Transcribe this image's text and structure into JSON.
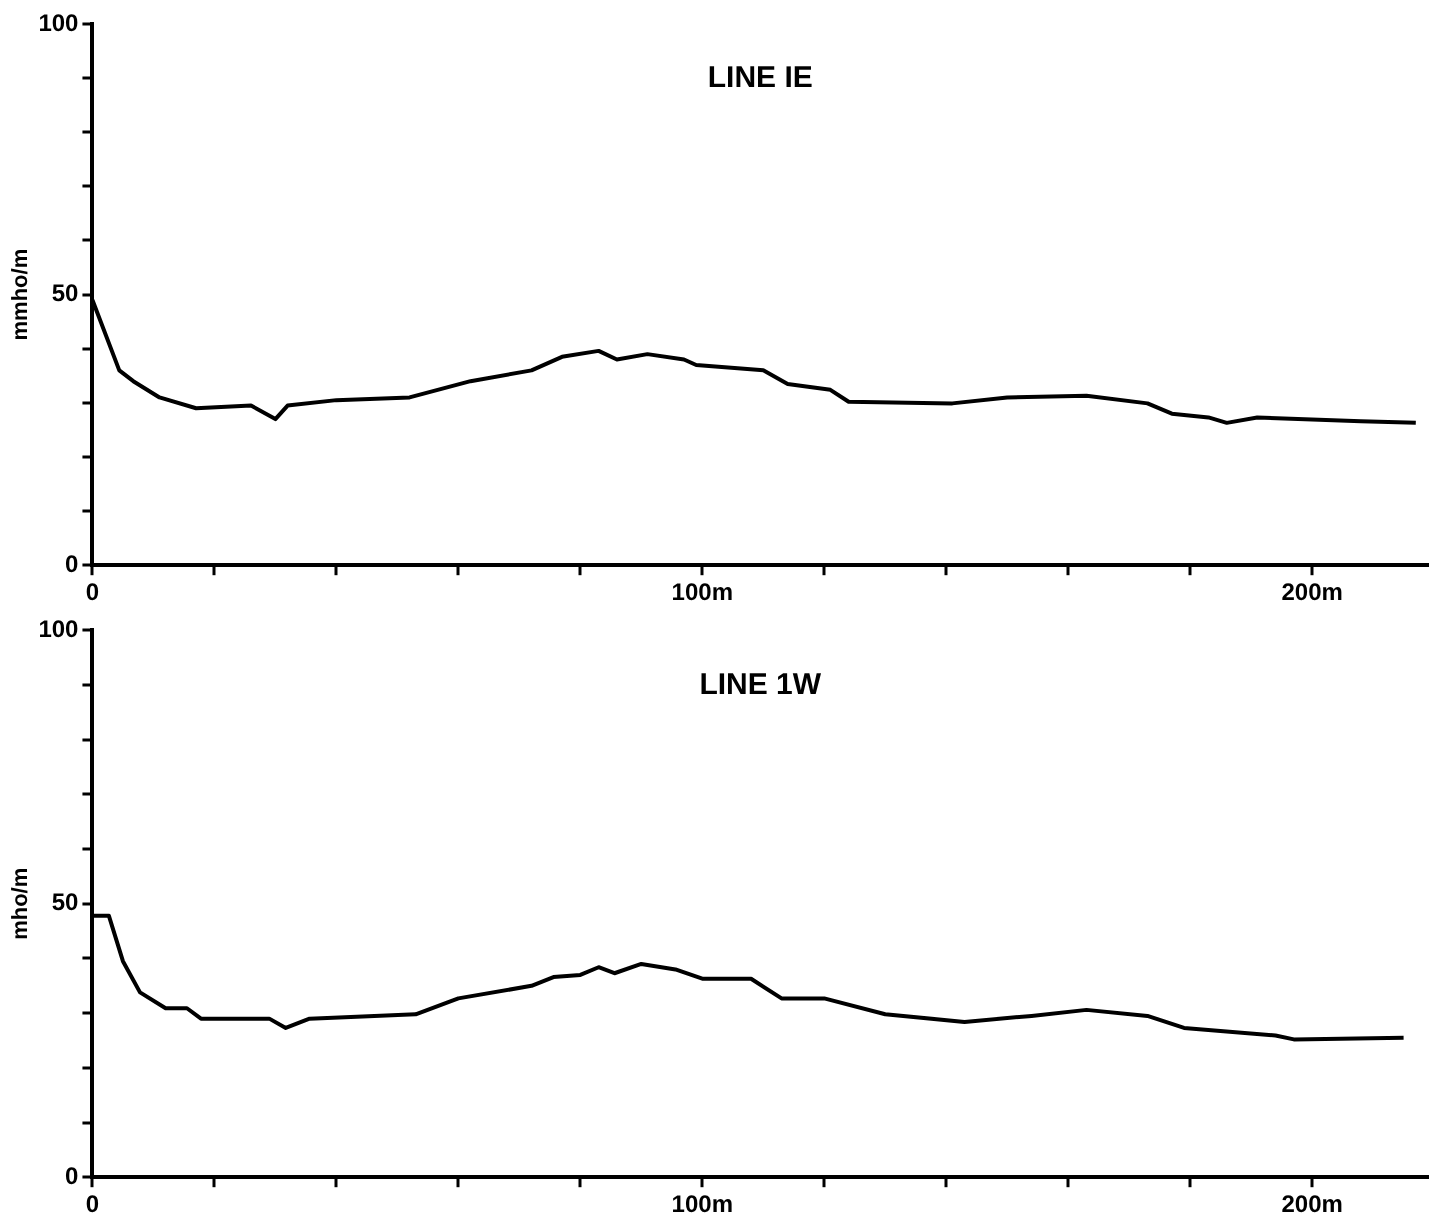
{
  "chart_data": [
    {
      "type": "line",
      "title": "LINE IE",
      "ylabel": "mmho/m",
      "xlim": [
        0,
        219
      ],
      "ylim": [
        0,
        100
      ],
      "xticks": [
        0,
        {
          "value": 20,
          "label": null
        },
        {
          "value": 40,
          "label": null
        },
        {
          "value": 60,
          "label": null
        },
        {
          "value": 80,
          "label": null
        },
        {
          "value": 100,
          "label": "100m"
        },
        {
          "value": 120,
          "label": null
        },
        {
          "value": 140,
          "label": null
        },
        {
          "value": 160,
          "label": null
        },
        {
          "value": 180,
          "label": null
        },
        {
          "value": 200,
          "label": "200m"
        }
      ],
      "yticks": [
        0,
        {
          "value": 10,
          "label": null
        },
        {
          "value": 20,
          "label": null
        },
        {
          "value": 30,
          "label": null
        },
        {
          "value": 40,
          "label": null
        },
        50,
        {
          "value": 60,
          "label": null
        },
        {
          "value": 70,
          "label": null
        },
        {
          "value": 80,
          "label": null
        },
        {
          "value": 90,
          "label": null
        },
        100
      ],
      "grid": false,
      "marker": "none",
      "line_style": "solid",
      "series": [
        {
          "color": "#000000",
          "x": [
            0,
            4.4,
            6.7,
            11,
            17,
            26,
            30,
            32,
            40,
            52,
            62,
            72,
            77,
            83,
            86,
            91,
            97,
            99,
            110,
            114,
            121,
            124,
            141,
            150,
            163,
            173,
            177,
            183,
            186,
            191,
            208,
            217
          ],
          "values": [
            49,
            36,
            34,
            31,
            29,
            29.5,
            27,
            29.5,
            30.5,
            31,
            34,
            36,
            38.5,
            39.6,
            38,
            39,
            38,
            37,
            36,
            33.5,
            32.4,
            30.2,
            29.9,
            31,
            31.3,
            29.9,
            28,
            27.3,
            26.3,
            27.3,
            26.6,
            26.3
          ]
        }
      ]
    },
    {
      "type": "line",
      "title": "LINE 1W",
      "ylabel": "mho/m",
      "xlim": [
        0,
        219
      ],
      "ylim": [
        0,
        100
      ],
      "xticks": [
        0,
        {
          "value": 20,
          "label": null
        },
        {
          "value": 40,
          "label": null
        },
        {
          "value": 60,
          "label": null
        },
        {
          "value": 80,
          "label": null
        },
        {
          "value": 100,
          "label": "100m"
        },
        {
          "value": 120,
          "label": null
        },
        {
          "value": 140,
          "label": null
        },
        {
          "value": 160,
          "label": null
        },
        {
          "value": 180,
          "label": null
        },
        {
          "value": 200,
          "label": "200m"
        }
      ],
      "yticks": [
        0,
        {
          "value": 10,
          "label": null
        },
        {
          "value": 20,
          "label": null
        },
        {
          "value": 30,
          "label": null
        },
        {
          "value": 40,
          "label": null
        },
        50,
        {
          "value": 60,
          "label": null
        },
        {
          "value": 70,
          "label": null
        },
        {
          "value": 80,
          "label": null
        },
        {
          "value": 90,
          "label": null
        },
        100
      ],
      "grid": false,
      "marker": "none",
      "line_style": "solid",
      "series": [
        {
          "color": "#000000",
          "x": [
            0,
            2.7,
            5,
            7.8,
            12,
            15.5,
            17.8,
            29,
            31.7,
            35.6,
            53,
            60,
            72,
            75.6,
            80,
            83,
            85.6,
            90,
            95.6,
            100,
            108,
            113,
            120,
            130,
            143,
            154,
            163,
            173,
            179,
            194,
            197,
            215
          ],
          "values": [
            47.8,
            47.8,
            39.5,
            33.8,
            30.9,
            30.9,
            29,
            29,
            27.3,
            29,
            29.8,
            32.7,
            35,
            36.6,
            37,
            38.4,
            37.3,
            39,
            38,
            36.3,
            36.3,
            32.7,
            32.7,
            29.8,
            28.4,
            29.5,
            30.6,
            29.5,
            27.3,
            25.9,
            25.2,
            25.5
          ]
        }
      ]
    }
  ]
}
